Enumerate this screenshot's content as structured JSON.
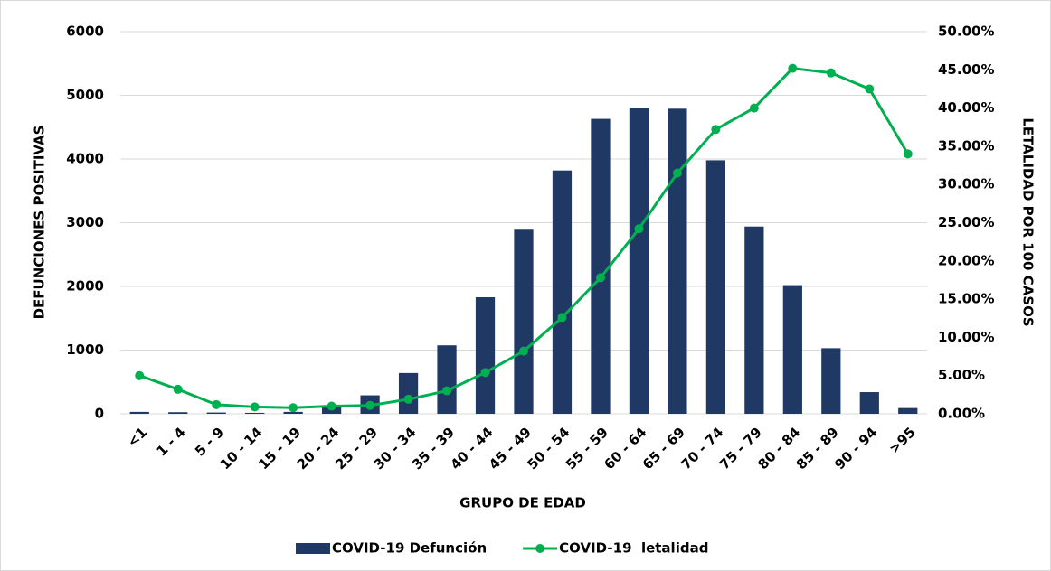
{
  "chart_data": {
    "type": "bar_line",
    "x_label": "GRUPO DE EDAD",
    "y_label": "DEFUNCIONES POSITIVAS",
    "y2_label": "LETALIDAD POR 100 CASOS",
    "categories": [
      "<1",
      "1 - 4",
      "5 - 9",
      "10 - 14",
      "15 - 19",
      "20 - 24",
      "25 - 29",
      "30 - 34",
      "35 - 39",
      "40 - 44",
      "45 - 49",
      "50 - 54",
      "55 - 59",
      "60 - 64",
      "65 - 69",
      "70 - 74",
      "75 - 79",
      "80 - 84",
      "85 - 89",
      "90 - 94",
      ">95"
    ],
    "series": [
      {
        "name": "COVID-19 Defunción",
        "color": "#1f3864",
        "type": "bar",
        "values": [
          30,
          25,
          20,
          15,
          30,
          100,
          290,
          640,
          1075,
          1830,
          2890,
          3820,
          4630,
          4800,
          4790,
          3980,
          2940,
          2020,
          1030,
          340,
          90
        ]
      },
      {
        "name": "COVID-19  letalidad",
        "color": "#00b050",
        "type": "line",
        "axis": "y2",
        "values": [
          5.0,
          3.2,
          1.2,
          0.9,
          0.8,
          1.0,
          1.1,
          1.9,
          3.0,
          5.4,
          8.2,
          12.6,
          17.8,
          24.2,
          31.5,
          37.2,
          40.0,
          45.2,
          44.6,
          42.5,
          34.0
        ]
      }
    ],
    "ylim": [
      0,
      6000
    ],
    "yticks": [
      0,
      1000,
      2000,
      3000,
      4000,
      5000,
      6000
    ],
    "y2lim": [
      0,
      50
    ],
    "y2ticks": [
      {
        "value": 0,
        "label": "0.00%"
      },
      {
        "value": 5,
        "label": "5.00%"
      },
      {
        "value": 10,
        "label": "10.00%"
      },
      {
        "value": 15,
        "label": "15.00%"
      },
      {
        "value": 20,
        "label": "20.00%"
      },
      {
        "value": 25,
        "label": "25.00%"
      },
      {
        "value": 30,
        "label": "30.00%"
      },
      {
        "value": 35,
        "label": "35.00%"
      },
      {
        "value": 40,
        "label": "40.00%"
      },
      {
        "value": 45,
        "label": "45.00%"
      },
      {
        "value": 50,
        "label": "50.00%"
      }
    ],
    "grid": true,
    "legend": "bottom"
  }
}
